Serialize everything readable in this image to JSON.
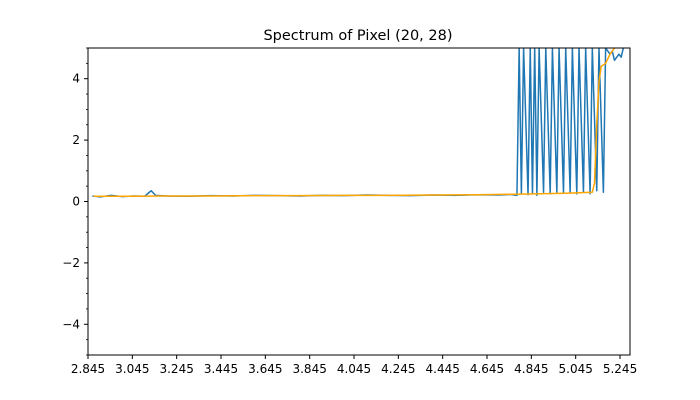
{
  "chart_data": {
    "type": "line",
    "title": "Spectrum of Pixel (20, 28)",
    "xlabel": "",
    "ylabel": "",
    "xlim": [
      2.845,
      5.29
    ],
    "ylim": [
      -5,
      5
    ],
    "x_ticks": [
      2.845,
      3.045,
      3.245,
      3.445,
      3.645,
      3.845,
      4.045,
      4.245,
      4.445,
      4.645,
      4.845,
      5.045,
      5.245
    ],
    "x_tick_labels": [
      "2.845",
      "3.045",
      "3.245",
      "3.445",
      "3.645",
      "3.845",
      "4.045",
      "4.245",
      "4.445",
      "4.645",
      "4.845",
      "5.045",
      "5.245"
    ],
    "y_ticks": [
      -4,
      -2,
      0,
      2,
      4
    ],
    "y_tick_labels": [
      "−4",
      "−2",
      "0",
      "2",
      "4"
    ],
    "grid": false,
    "legend": "none",
    "series": [
      {
        "color": "#1f77b4",
        "x": [
          2.865,
          2.9,
          2.95,
          3.0,
          3.05,
          3.1,
          3.13,
          3.15,
          3.2,
          3.3,
          3.4,
          3.5,
          3.6,
          3.7,
          3.8,
          3.9,
          4.0,
          4.1,
          4.2,
          4.3,
          4.4,
          4.5,
          4.6,
          4.7,
          4.75,
          4.78,
          4.79,
          4.8,
          4.81,
          4.83,
          4.84,
          4.85,
          4.86,
          4.87,
          4.88,
          4.9,
          4.91,
          4.93,
          4.94,
          4.96,
          4.97,
          4.99,
          5.0,
          5.02,
          5.03,
          5.05,
          5.06,
          5.08,
          5.09,
          5.11,
          5.12,
          5.14,
          5.15,
          5.17,
          5.18,
          5.2,
          5.21,
          5.22,
          5.24,
          5.25,
          5.26
        ],
        "y": [
          0.18,
          0.15,
          0.2,
          0.16,
          0.18,
          0.17,
          0.35,
          0.2,
          0.18,
          0.17,
          0.19,
          0.18,
          0.2,
          0.19,
          0.18,
          0.2,
          0.19,
          0.21,
          0.2,
          0.19,
          0.21,
          0.2,
          0.22,
          0.21,
          0.23,
          0.2,
          5.0,
          0.25,
          5.0,
          0.22,
          5.0,
          0.25,
          5.0,
          0.2,
          5.0,
          0.3,
          5.0,
          0.25,
          5.0,
          0.3,
          5.0,
          0.28,
          5.0,
          0.3,
          5.0,
          0.25,
          5.0,
          0.3,
          5.0,
          0.25,
          5.0,
          0.35,
          5.0,
          0.3,
          5.0,
          4.8,
          4.9,
          4.6,
          4.8,
          4.7,
          5.0
        ]
      },
      {
        "color": "#ffa500",
        "x": [
          2.87,
          3.0,
          3.2,
          3.4,
          3.6,
          3.8,
          4.0,
          4.2,
          4.4,
          4.6,
          4.8,
          5.0,
          5.12,
          5.13,
          5.14,
          5.15,
          5.16,
          5.18,
          5.2,
          5.22
        ],
        "y": [
          0.17,
          0.17,
          0.18,
          0.18,
          0.19,
          0.19,
          0.2,
          0.2,
          0.21,
          0.22,
          0.24,
          0.27,
          0.3,
          0.6,
          2.5,
          3.9,
          4.4,
          4.5,
          4.8,
          5.0
        ]
      }
    ]
  }
}
